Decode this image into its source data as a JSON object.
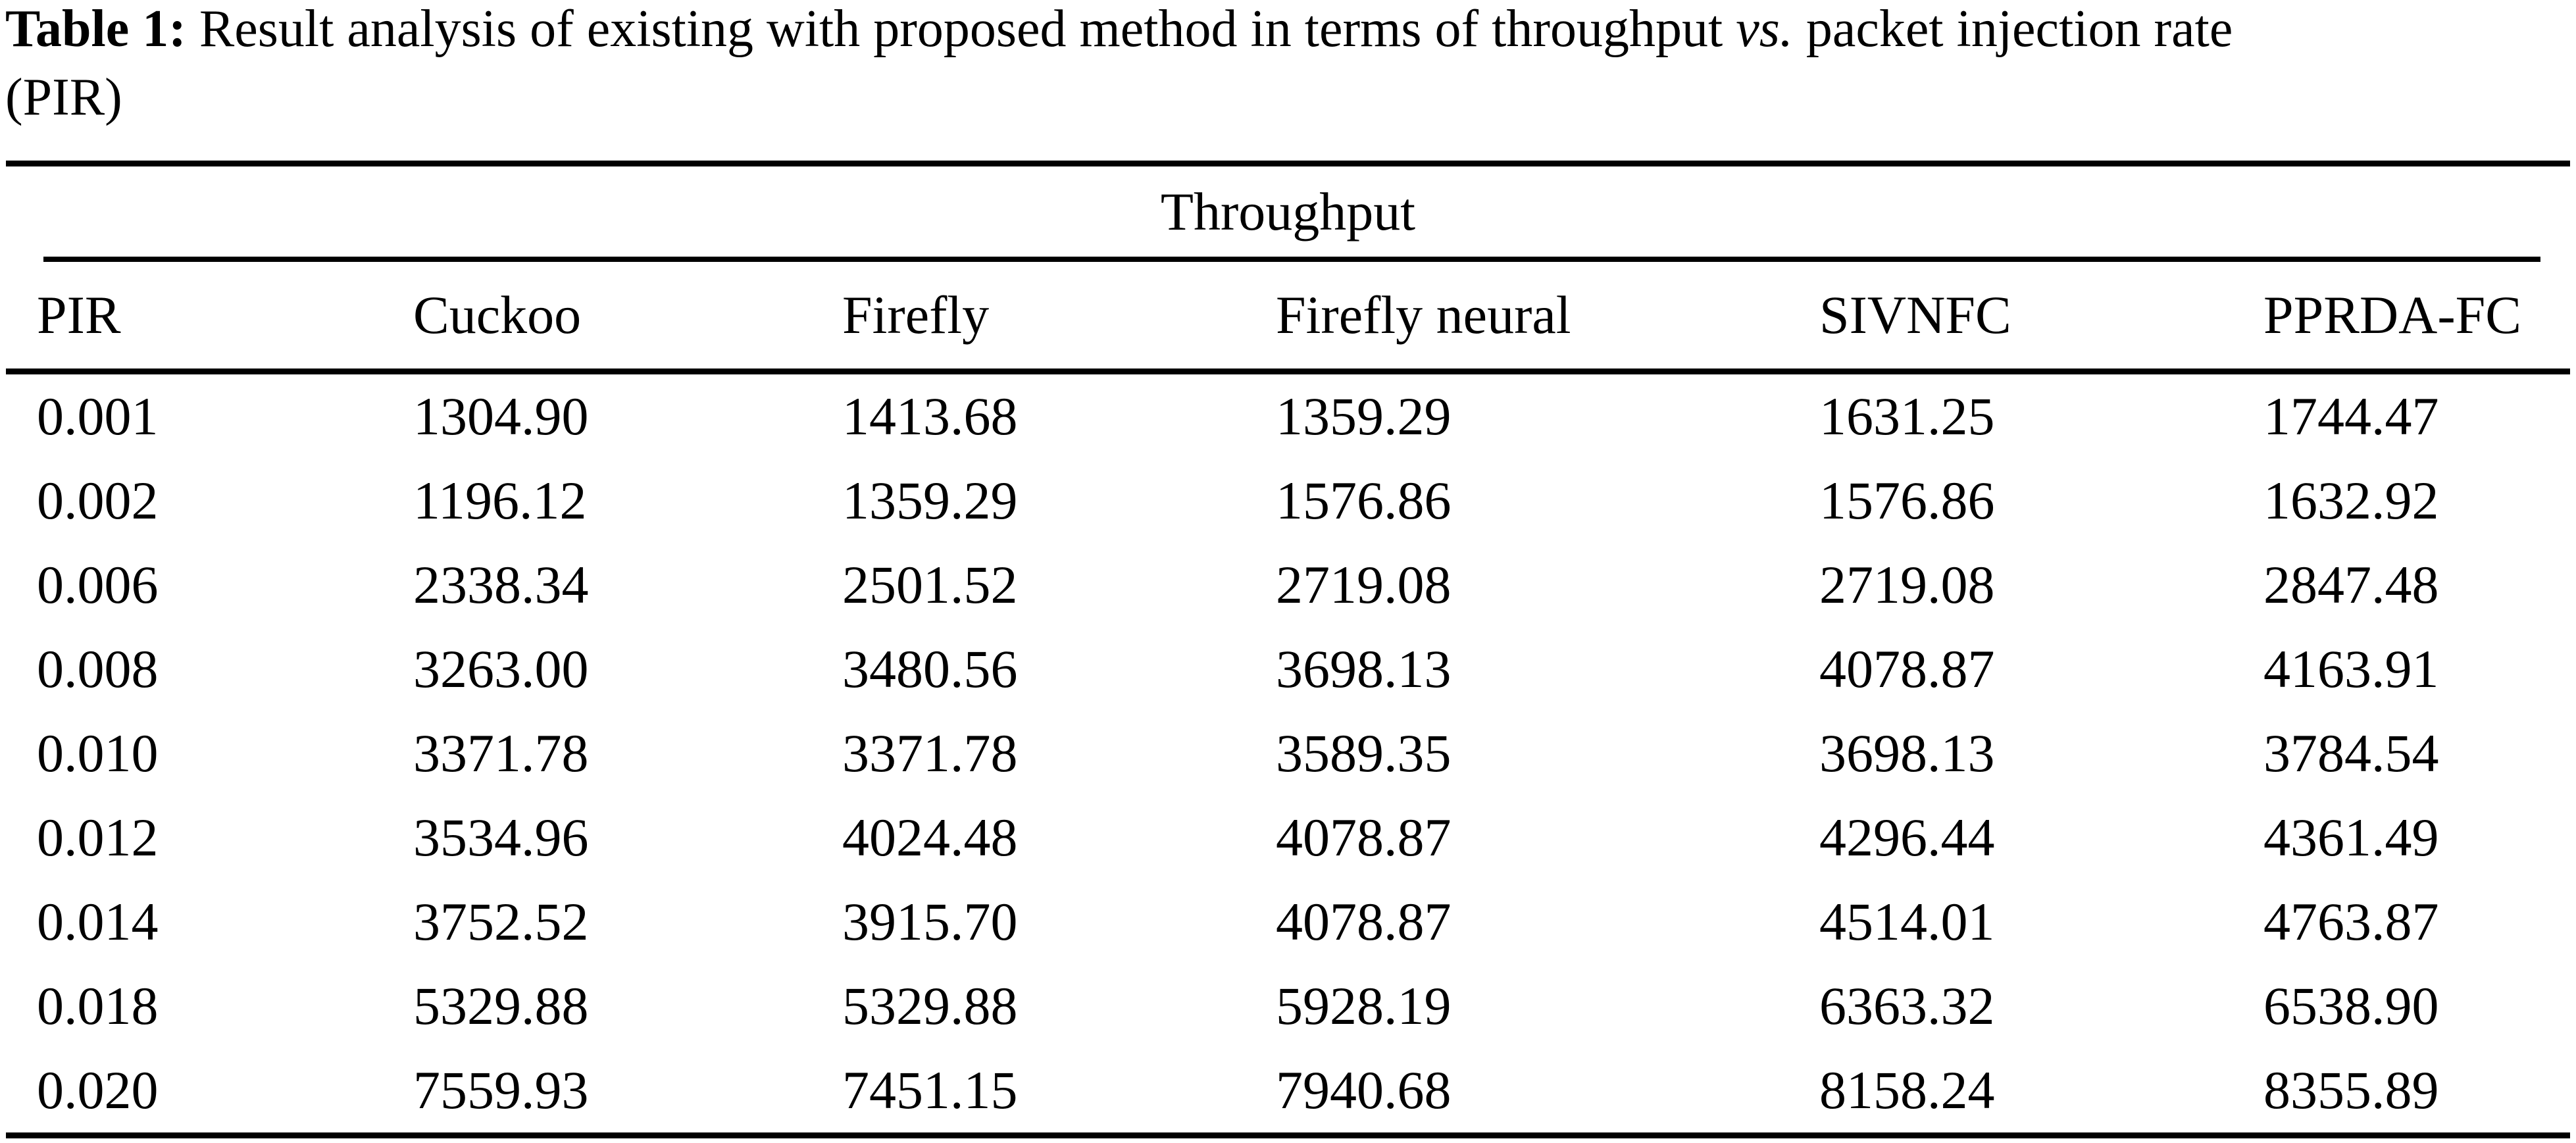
{
  "caption": {
    "label": "Table 1:",
    "body": " Result analysis of existing with proposed method in terms of throughput ",
    "vs": "vs.",
    "tail": " packet injection rate",
    "line2": "(PIR)"
  },
  "table": {
    "group_header": "Throughput",
    "columns": [
      "PIR",
      "Cuckoo",
      "Firefly",
      "Firefly neural",
      "SIVNFC",
      "PPRDA-FC"
    ],
    "rows": [
      [
        "0.001",
        "1304.90",
        "1413.68",
        "1359.29",
        "1631.25",
        "1744.47"
      ],
      [
        "0.002",
        "1196.12",
        "1359.29",
        "1576.86",
        "1576.86",
        "1632.92"
      ],
      [
        "0.006",
        "2338.34",
        "2501.52",
        "2719.08",
        "2719.08",
        "2847.48"
      ],
      [
        "0.008",
        "3263.00",
        "3480.56",
        "3698.13",
        "4078.87",
        "4163.91"
      ],
      [
        "0.010",
        "3371.78",
        "3371.78",
        "3589.35",
        "3698.13",
        "3784.54"
      ],
      [
        "0.012",
        "3534.96",
        "4024.48",
        "4078.87",
        "4296.44",
        "4361.49"
      ],
      [
        "0.014",
        "3752.52",
        "3915.70",
        "4078.87",
        "4514.01",
        "4763.87"
      ],
      [
        "0.018",
        "5329.88",
        "5329.88",
        "5928.19",
        "6363.32",
        "6538.90"
      ],
      [
        "0.020",
        "7559.93",
        "7451.15",
        "7940.68",
        "8158.24",
        "8355.89"
      ]
    ]
  }
}
